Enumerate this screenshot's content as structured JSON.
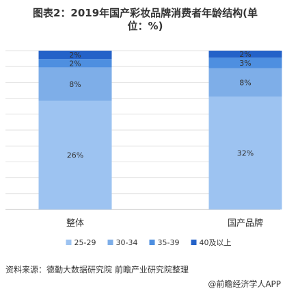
{
  "title": "图表2：2019年国产彩妆品牌消费者年龄结构(单位：%)",
  "source": "资料来源：德勤大数据研究院 前瞻产业研究院整理",
  "credit": "@前瞻经济学人APP",
  "chart_data": {
    "type": "bar",
    "stacked": "percent",
    "categories": [
      "整体",
      "国产品牌"
    ],
    "series": [
      {
        "name": "25-29",
        "color": "#9dc3f1",
        "values": [
          26,
          32
        ],
        "labels": [
          "26%",
          "32%"
        ]
      },
      {
        "name": "30-34",
        "color": "#7eaee8",
        "values": [
          8,
          8
        ],
        "labels": [
          "8%",
          "8%"
        ]
      },
      {
        "name": "35-39",
        "color": "#4e8fe0",
        "values": [
          2,
          3
        ],
        "labels": [
          "2%",
          "3%"
        ]
      },
      {
        "name": "40及以上",
        "color": "#2462c8",
        "values": [
          2,
          2
        ],
        "labels": [
          "2%",
          "2%"
        ]
      }
    ],
    "legend_position": "bottom",
    "grid": true
  }
}
